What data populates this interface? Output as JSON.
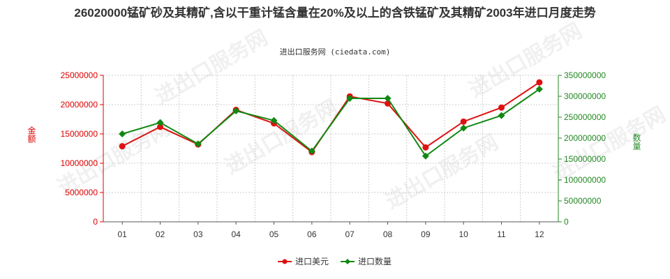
{
  "title": "26020000锰矿砂及其精矿,含以干重计锰含量在20%及以上的含铁锰矿及其精矿2003年进口月度走势",
  "subtitle": "进出口服务网 (ciedata.com)",
  "watermark": "进出口服务网",
  "colors": {
    "left_axis": "#dd0000",
    "right_axis": "#228822",
    "series_usd": "#dd1111",
    "series_qty": "#118811",
    "grid": "#cccccc",
    "axis": "#555555"
  },
  "chart_data": {
    "type": "line",
    "categories": [
      "01",
      "02",
      "03",
      "04",
      "05",
      "06",
      "07",
      "08",
      "09",
      "10",
      "11",
      "12"
    ],
    "y_left": {
      "label": "金额",
      "ylim": [
        0,
        25000000
      ],
      "ticks": [
        "0",
        "5000000",
        "10000000",
        "15000000",
        "20000000",
        "25000000"
      ]
    },
    "y_right": {
      "label": "数量",
      "ylim": [
        0,
        350000000
      ],
      "ticks": [
        "0",
        "50000000",
        "100000000",
        "150000000",
        "200000000",
        "250000000",
        "300000000",
        "350000000"
      ]
    },
    "grid": true,
    "legend_position": "bottom",
    "series": [
      {
        "name": "进口美元",
        "axis": "left",
        "values": [
          12900000,
          16200000,
          13200000,
          19100000,
          16800000,
          11900000,
          21400000,
          20200000,
          12700000,
          17100000,
          19500000,
          23800000
        ]
      },
      {
        "name": "进口数量",
        "axis": "right",
        "values": [
          210000000,
          237000000,
          186000000,
          265000000,
          242000000,
          169000000,
          295000000,
          295000000,
          157000000,
          224000000,
          254000000,
          317000000
        ]
      }
    ]
  }
}
